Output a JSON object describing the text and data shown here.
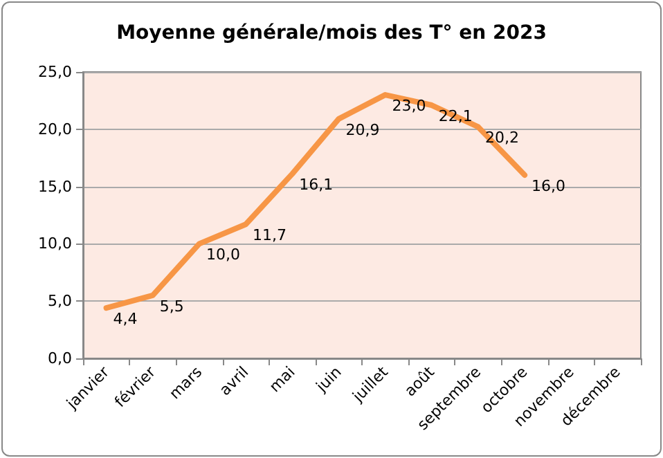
{
  "chart_data": {
    "type": "line",
    "title": "Moyenne générale/mois des T° en 2023",
    "categories": [
      "janvier",
      "février",
      "mars",
      "avril",
      "mai",
      "juin",
      "juillet",
      "août",
      "septembre",
      "octobre",
      "novembre",
      "décembre"
    ],
    "series": [
      {
        "color": "#f79646",
        "values": [
          4.4,
          5.5,
          10.0,
          11.7,
          16.1,
          20.9,
          23.0,
          22.1,
          20.2,
          16.0,
          null,
          null
        ],
        "value_labels": [
          "4,4",
          "5,5",
          "10,0",
          "11,7",
          "16,1",
          "20,9",
          "23,0",
          "22,1",
          "20,2",
          "16,0",
          null,
          null
        ]
      }
    ],
    "ylim": [
      0,
      25
    ],
    "yticks": [
      {
        "value": 0,
        "label": "0,0"
      },
      {
        "value": 5,
        "label": "5,0"
      },
      {
        "value": 10,
        "label": "10,0"
      },
      {
        "value": 15,
        "label": "15,0"
      },
      {
        "value": 20,
        "label": "20,0"
      },
      {
        "value": 25,
        "label": "25,0"
      }
    ],
    "grid": "y",
    "marker": "none",
    "line_style": "solid"
  }
}
